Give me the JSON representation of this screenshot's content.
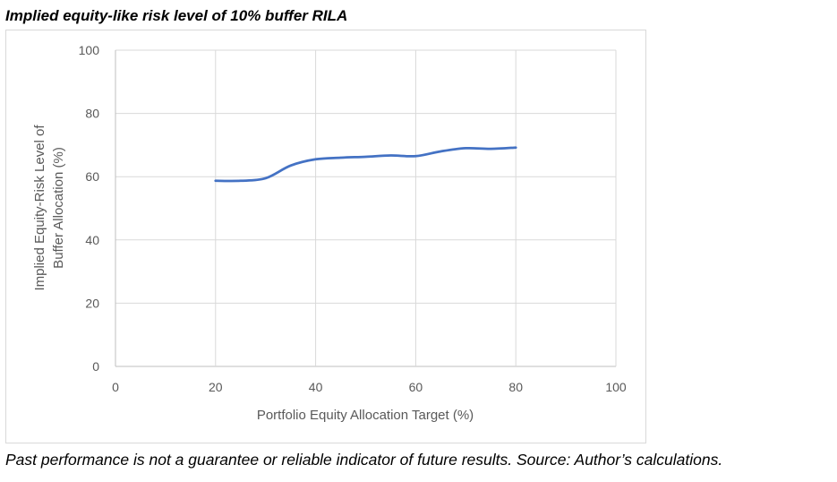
{
  "chart_data": {
    "type": "line",
    "title": "Implied equity-like risk level of 10% buffer RILA",
    "xlabel": "Portfolio Equity Allocation Target (%)",
    "ylabel_lines": [
      "Implied Equity-Risk Level of",
      "Buffer Allocation (%)"
    ],
    "xlim": [
      0,
      100
    ],
    "ylim": [
      0,
      100
    ],
    "xticks": [
      0,
      20,
      40,
      60,
      80,
      100
    ],
    "yticks": [
      0,
      20,
      40,
      60,
      80,
      100
    ],
    "grid": true,
    "series": [
      {
        "color": "#4472c4",
        "x": [
          20,
          25,
          30,
          35,
          40,
          45,
          50,
          55,
          60,
          65,
          70,
          75,
          80
        ],
        "y": [
          58.7,
          58.7,
          59.5,
          63.5,
          65.5,
          66.0,
          66.3,
          66.7,
          66.5,
          68.0,
          69.0,
          68.8,
          69.2
        ]
      }
    ]
  },
  "footnote": "Past performance is not a guarantee or reliable indicator of future results. Source: Author’s calculations."
}
